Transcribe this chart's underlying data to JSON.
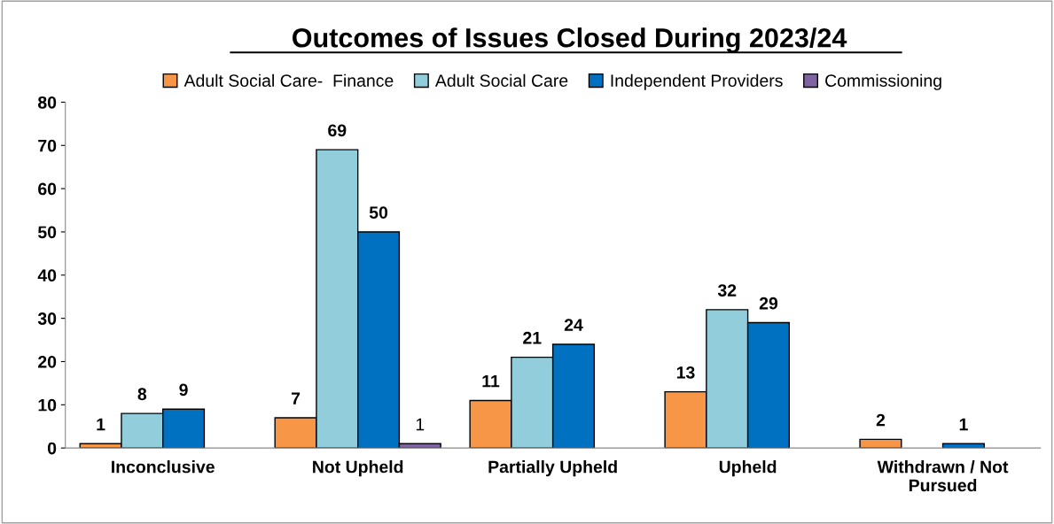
{
  "chart_data": {
    "type": "bar",
    "title": "Outcomes of Issues Closed During 2023/24",
    "categories": [
      "Inconclusive",
      "Not Upheld",
      "Partially Upheld",
      "Upheld",
      "Withdrawn / Not\nPursued"
    ],
    "series": [
      {
        "name": "Adult Social Care-  Finance",
        "color": "#f79646",
        "values": [
          1,
          7,
          11,
          13,
          2
        ]
      },
      {
        "name": "Adult Social Care",
        "color": "#92cddc",
        "values": [
          8,
          69,
          21,
          32,
          null
        ]
      },
      {
        "name": "Independent Providers",
        "color": "#0070c0",
        "values": [
          9,
          50,
          24,
          29,
          1
        ]
      },
      {
        "name": "Commissioning",
        "color": "#8064a2",
        "values": [
          null,
          1,
          null,
          null,
          null
        ]
      }
    ],
    "ylim": [
      0,
      80
    ],
    "yticks": [
      0,
      10,
      20,
      30,
      40,
      50,
      60,
      70,
      80
    ],
    "data_labels": true,
    "legend": "top",
    "grid": false
  }
}
